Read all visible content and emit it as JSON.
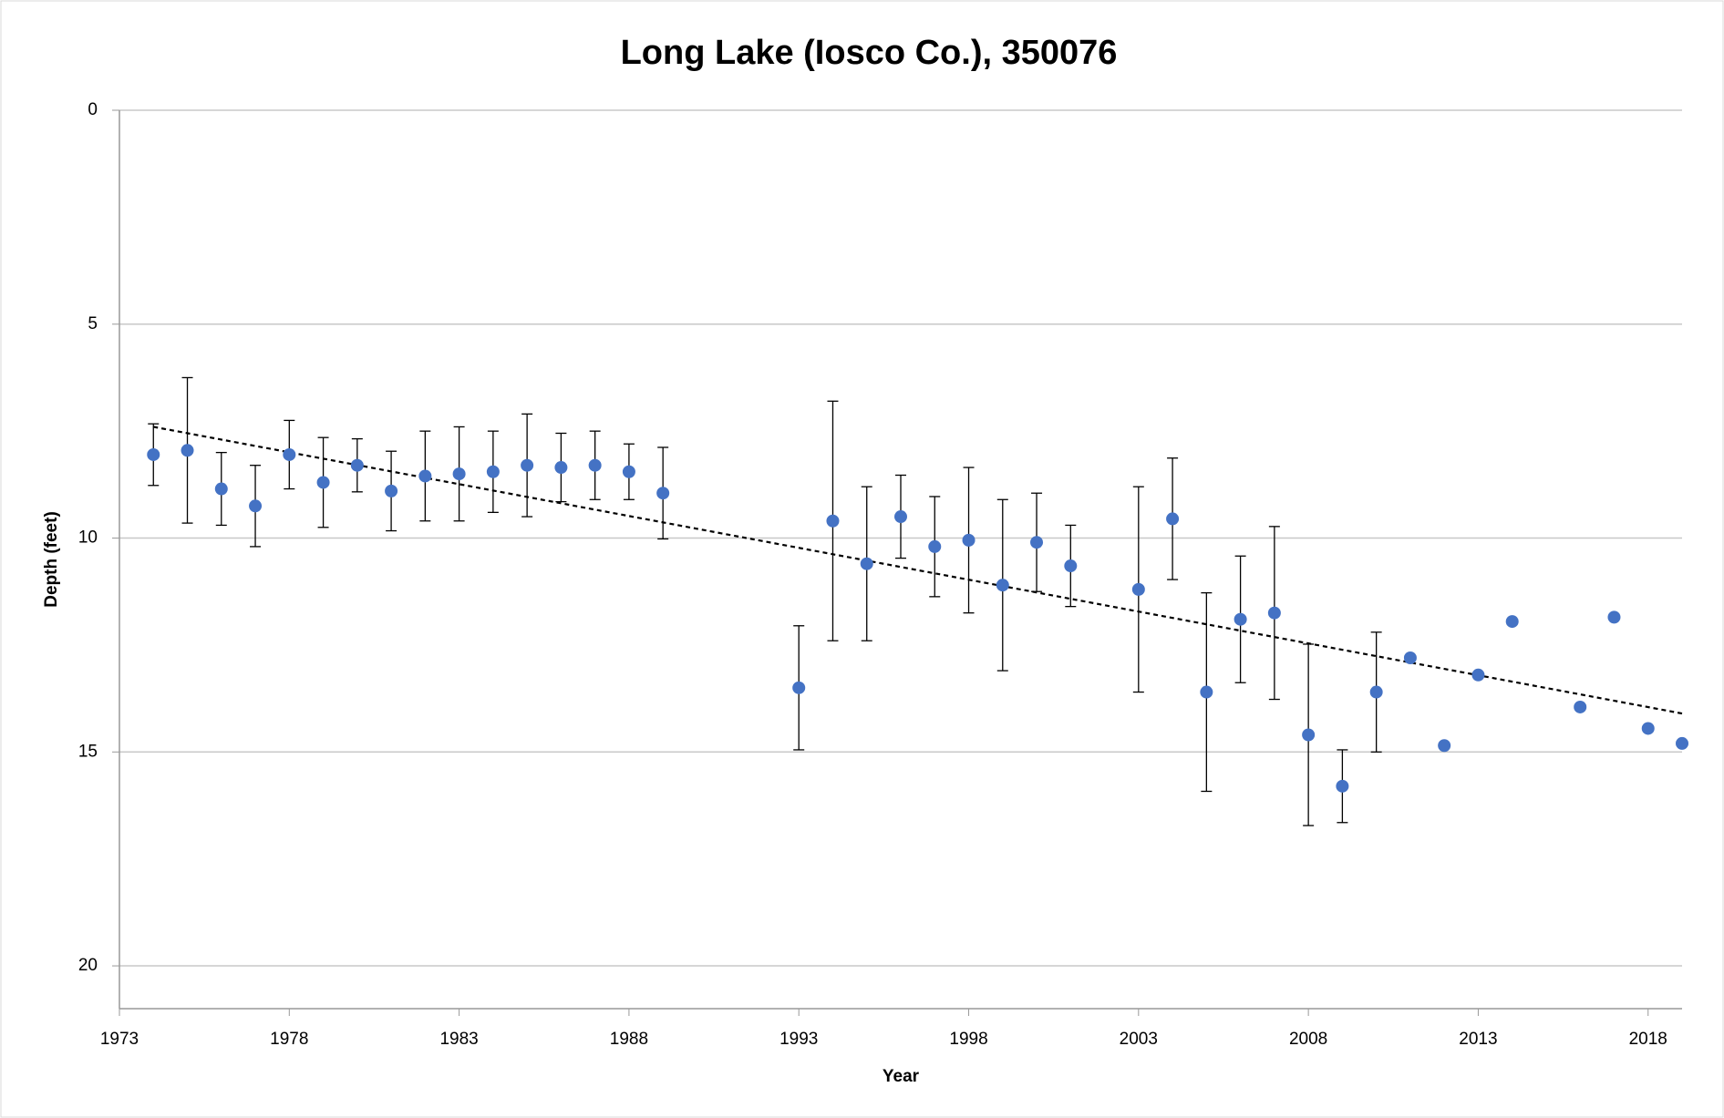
{
  "chart_data": {
    "type": "scatter",
    "title": "Long Lake (Iosco Co.), 350076",
    "x_label": "Year",
    "y_label": "Depth (feet)",
    "x": [
      1974,
      1975,
      1976,
      1977,
      1978,
      1979,
      1980,
      1981,
      1982,
      1983,
      1984,
      1985,
      1986,
      1987,
      1988,
      1989,
      1993,
      1994,
      1995,
      1996,
      1997,
      1998,
      1999,
      2000,
      2001,
      2003,
      2004,
      2005,
      2006,
      2007,
      2008,
      2009,
      2010,
      2011,
      2012,
      2013,
      2014,
      2016,
      2017,
      2018,
      2019
    ],
    "values": [
      8.05,
      7.95,
      8.85,
      9.25,
      8.05,
      8.7,
      8.3,
      8.9,
      8.55,
      8.5,
      8.45,
      8.3,
      8.35,
      8.3,
      8.45,
      8.95,
      13.5,
      9.6,
      10.6,
      9.5,
      10.2,
      10.05,
      11.1,
      10.1,
      10.65,
      11.2,
      9.55,
      13.6,
      11.9,
      11.75,
      14.6,
      15.8,
      13.6,
      12.8,
      14.85,
      13.2,
      11.95,
      13.95,
      11.85,
      14.45,
      14.8
    ],
    "errors": [
      0.72,
      1.7,
      0.85,
      0.95,
      0.8,
      1.05,
      0.62,
      0.93,
      1.05,
      1.1,
      0.95,
      1.2,
      0.8,
      0.8,
      0.65,
      1.07,
      1.45,
      2.8,
      1.8,
      0.97,
      1.17,
      1.7,
      2.0,
      1.15,
      0.95,
      2.4,
      1.42,
      2.32,
      1.48,
      2.02,
      2.12,
      0.85,
      1.4,
      null,
      null,
      null,
      null,
      null,
      null,
      null,
      null
    ],
    "color": "#4472c4",
    "trendline": {
      "x": [
        1974,
        2019
      ],
      "values": [
        7.4,
        14.1
      ]
    },
    "xlim": [
      1973,
      2019
    ],
    "xticks": [
      1973,
      1978,
      1983,
      1988,
      1993,
      1998,
      2003,
      2008,
      2013,
      2018
    ],
    "ylim": [
      0,
      21
    ],
    "yticks": [
      0,
      5,
      10,
      15,
      20
    ],
    "y_reversed": true,
    "grid": true
  }
}
